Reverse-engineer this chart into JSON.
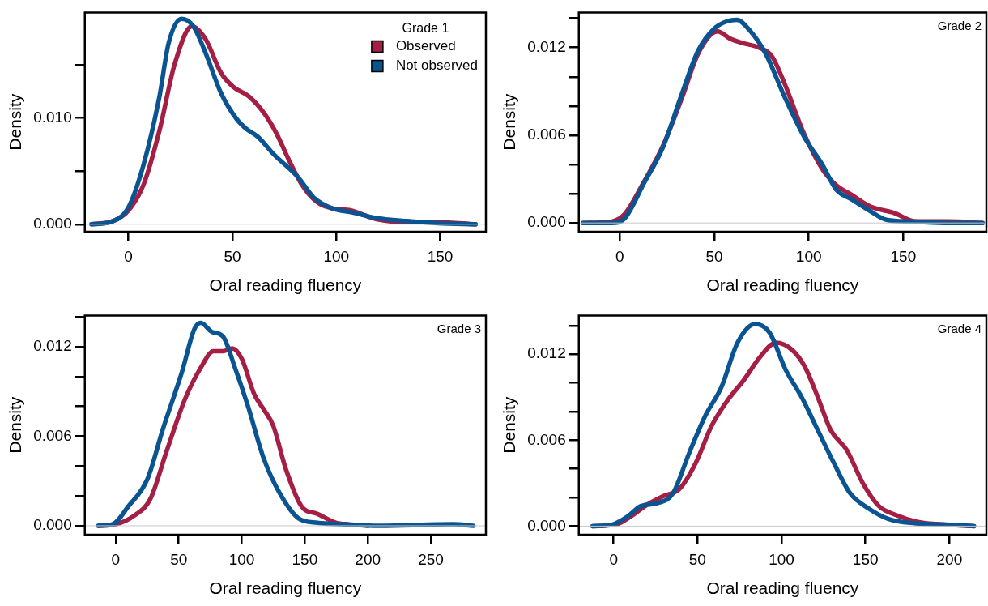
{
  "chart_data": [
    {
      "type": "line",
      "xlabel": "Oral reading fluency",
      "ylabel": "Density",
      "legend_title": "Grade 1",
      "legend": "top right",
      "marker": "none",
      "line_style": "solid",
      "grid": false,
      "xlim": [
        -21,
        172
      ],
      "xticks": [
        0,
        50,
        100,
        150
      ],
      "ylim": [
        -0.0007,
        0.0199
      ],
      "yticks": [
        {
          "value": 0,
          "label": "0.000"
        },
        {
          "value": 0.005,
          "label": null
        },
        {
          "value": 0.01,
          "label": "0.010"
        },
        {
          "value": 0.015,
          "label": null
        }
      ],
      "ref_lines": [
        {
          "axis": "y",
          "value": 0,
          "color": "#c8c8c8"
        }
      ],
      "series": [
        {
          "name": "Not observed",
          "color": "#0a5591",
          "x": [
            -17.8,
            -8.9,
            0,
            7.4,
            14.9,
            19.3,
            25.6,
            31.2,
            37.1,
            44.6,
            52,
            56.5,
            62.4,
            69.8,
            81.7,
            89.2,
            98,
            108,
            119,
            134,
            149,
            167
          ],
          "values": [
            0,
            0.0002,
            0.0016,
            0.0057,
            0.012,
            0.017,
            0.0193,
            0.0186,
            0.0161,
            0.0123,
            0.0099,
            0.009,
            0.0082,
            0.0066,
            0.0044,
            0.0025,
            0.0015,
            0.0011,
            0.0006,
            0.0003,
            0.0001,
            0
          ]
        },
        {
          "name": "Observed",
          "color": "#a51f45",
          "x": [
            -17.8,
            -7.4,
            0,
            7.4,
            14.9,
            22.3,
            30.5,
            37.1,
            44.6,
            50.5,
            58,
            65.4,
            71.3,
            77.3,
            83.2,
            90.6,
            98,
            107,
            119,
            134,
            149,
            167
          ],
          "values": [
            0,
            0.0003,
            0.0013,
            0.0038,
            0.0088,
            0.0151,
            0.0186,
            0.0174,
            0.0142,
            0.0129,
            0.012,
            0.0104,
            0.0085,
            0.006,
            0.0038,
            0.0021,
            0.0015,
            0.0013,
            0.0005,
            0.0002,
            0.0002,
            0
          ]
        }
      ]
    },
    {
      "type": "line",
      "xlabel": "Oral reading fluency",
      "ylabel": "Density",
      "annotations": [
        "Grade 2"
      ],
      "marker": "none",
      "line_style": "solid",
      "grid": false,
      "xlim": [
        -21.7,
        194
      ],
      "xticks": [
        0,
        50,
        100,
        150
      ],
      "ylim": [
        -0.0006,
        0.0144
      ],
      "yticks": [
        {
          "value": 0,
          "label": "0.000"
        },
        {
          "value": 0.002,
          "label": null
        },
        {
          "value": 0.004,
          "label": null
        },
        {
          "value": 0.006,
          "label": "0.006"
        },
        {
          "value": 0.008,
          "label": null
        },
        {
          "value": 0.01,
          "label": null
        },
        {
          "value": 0.012,
          "label": "0.012"
        },
        {
          "value": 0.014,
          "label": null
        }
      ],
      "ref_lines": [
        {
          "axis": "y",
          "value": 0,
          "color": "#c8c8c8"
        }
      ],
      "series": [
        {
          "color": "#0a5591",
          "x": [
            -19.5,
            -4.2,
            2.5,
            12.7,
            22.9,
            33,
            41.5,
            50,
            56.8,
            61.9,
            68.6,
            77.1,
            87.3,
            97.5,
            107.6,
            114.4,
            122.9,
            131.4,
            141.5,
            153.4,
            173.7,
            192
          ],
          "values": [
            0,
            0,
            0.0003,
            0.0027,
            0.0052,
            0.0089,
            0.0118,
            0.0133,
            0.0138,
            0.0139,
            0.0132,
            0.0116,
            0.0086,
            0.0059,
            0.0039,
            0.0023,
            0.0016,
            0.0009,
            0.0002,
            0.0001,
            0,
            0
          ]
        },
        {
          "color": "#a51f45",
          "x": [
            -19.5,
            -4.2,
            2.5,
            12.7,
            22.9,
            33,
            41.5,
            51.7,
            58.5,
            65.3,
            73.7,
            80.5,
            87.3,
            97.5,
            107.6,
            114.4,
            122.9,
            133,
            144.9,
            156.8,
            173.7,
            192
          ],
          "values": [
            0,
            0.0001,
            0.0006,
            0.0028,
            0.0053,
            0.0086,
            0.0116,
            0.0131,
            0.0126,
            0.0123,
            0.012,
            0.0114,
            0.0095,
            0.0061,
            0.0036,
            0.0026,
            0.0019,
            0.0011,
            0.0007,
            0.0001,
            0.0001,
            0
          ]
        }
      ]
    },
    {
      "type": "line",
      "xlabel": "Oral reading fluency",
      "ylabel": "Density",
      "annotations": [
        "Grade 3"
      ],
      "marker": "none",
      "line_style": "solid",
      "grid": false,
      "xlim": [
        -24.5,
        293.7
      ],
      "xticks": [
        0,
        50,
        100,
        150,
        200,
        250
      ],
      "ylim": [
        -0.0006,
        0.0141
      ],
      "yticks": [
        {
          "value": 0,
          "label": "0.000"
        },
        {
          "value": 0.002,
          "label": null
        },
        {
          "value": 0.004,
          "label": null
        },
        {
          "value": 0.006,
          "label": "0.006"
        },
        {
          "value": 0.008,
          "label": null
        },
        {
          "value": 0.01,
          "label": null
        },
        {
          "value": 0.012,
          "label": "0.012"
        },
        {
          "value": 0.014,
          "label": null
        }
      ],
      "ref_lines": [
        {
          "axis": "y",
          "value": 0,
          "color": "#c8c8c8"
        }
      ],
      "series": [
        {
          "color": "#0a5591",
          "x": [
            -13.8,
            -2.5,
            10,
            25,
            37.5,
            52.5,
            62.5,
            67.5,
            76.3,
            85,
            95,
            105,
            117.5,
            130,
            145,
            160,
            180,
            210,
            267.5,
            283.8
          ],
          "values": [
            0,
            0.0001,
            0.0013,
            0.0031,
            0.0065,
            0.0103,
            0.0132,
            0.0136,
            0.013,
            0.0127,
            0.0105,
            0.008,
            0.0045,
            0.0022,
            0.0005,
            0.0002,
            0.0001,
            0,
            0.0001,
            0
          ]
        },
        {
          "color": "#a51f45",
          "x": [
            -13.8,
            0,
            15,
            27.5,
            40,
            55,
            67.5,
            77.5,
            85,
            92.5,
            100,
            110,
            117.5,
            125,
            135,
            147.5,
            160,
            175,
            185,
            200
          ],
          "values": [
            0,
            0.0001,
            0.0007,
            0.0018,
            0.0049,
            0.0085,
            0.0106,
            0.0117,
            0.0117,
            0.0119,
            0.0112,
            0.0088,
            0.0078,
            0.0067,
            0.0038,
            0.0013,
            0.0008,
            0.0002,
            0.0001,
            0
          ]
        }
      ]
    },
    {
      "type": "line",
      "xlabel": "Oral reading fluency",
      "ylabel": "Density",
      "annotations": [
        "Grade 4"
      ],
      "marker": "none",
      "line_style": "solid",
      "grid": false,
      "xlim": [
        -20.7,
        222
      ],
      "xticks": [
        0,
        50,
        100,
        150,
        200
      ],
      "ylim": [
        -0.0006,
        0.0147
      ],
      "yticks": [
        {
          "value": 0,
          "label": "0.000"
        },
        {
          "value": 0.002,
          "label": null
        },
        {
          "value": 0.004,
          "label": null
        },
        {
          "value": 0.006,
          "label": "0.006"
        },
        {
          "value": 0.008,
          "label": null
        },
        {
          "value": 0.01,
          "label": null
        },
        {
          "value": 0.012,
          "label": "0.012"
        },
        {
          "value": 0.014,
          "label": null
        }
      ],
      "ref_lines": [
        {
          "axis": "y",
          "value": 0,
          "color": "#c8c8c8"
        }
      ],
      "series": [
        {
          "color": "#0a5591",
          "x": [
            -12.5,
            -1,
            8.6,
            16.3,
            25.9,
            35.4,
            45,
            54.6,
            64.2,
            73.8,
            84.3,
            92.9,
            102.5,
            112,
            121.6,
            131.2,
            140.8,
            152.3,
            163.8,
            179,
            198,
            214.6
          ],
          "values": [
            0,
            0.0001,
            0.0007,
            0.0014,
            0.0016,
            0.0023,
            0.0051,
            0.0077,
            0.0097,
            0.0128,
            0.0141,
            0.0135,
            0.0109,
            0.009,
            0.0067,
            0.0044,
            0.0023,
            0.0012,
            0.0005,
            0.0002,
            0.0001,
            0
          ]
        },
        {
          "color": "#a51f45",
          "x": [
            -12.5,
            1,
            10.5,
            20,
            29.7,
            39.3,
            48.9,
            58.4,
            68,
            77.6,
            87.2,
            96.7,
            106.3,
            114,
            121.6,
            129.3,
            138.9,
            148.4,
            158,
            167.6,
            181,
            198,
            214.6
          ],
          "values": [
            0,
            0.0001,
            0.0007,
            0.0015,
            0.0021,
            0.0026,
            0.0044,
            0.007,
            0.0088,
            0.0102,
            0.0118,
            0.0128,
            0.0123,
            0.0111,
            0.009,
            0.0067,
            0.0053,
            0.003,
            0.0014,
            0.0008,
            0.0003,
            0.0001,
            0
          ]
        }
      ]
    }
  ]
}
